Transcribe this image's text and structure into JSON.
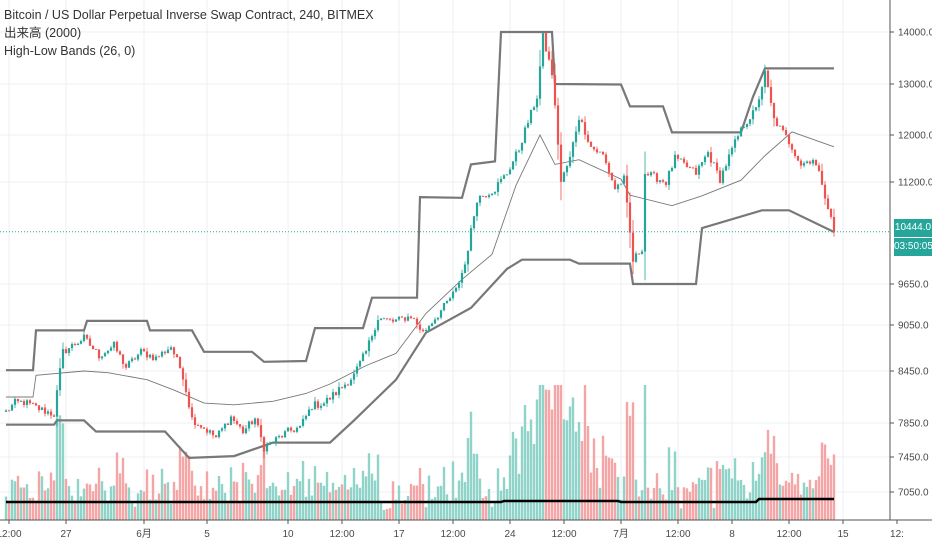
{
  "legend": {
    "symbol": "Bitcoin / US Dollar Perpetual Inverse Swap Contract, 240, BITMEX",
    "volume": "出来高 (2000)",
    "indicator": "High-Low Bands (26, 0)"
  },
  "price_badge": {
    "value": "10444.0",
    "countdown": "03:50:05",
    "color": "#26a69a"
  },
  "colors": {
    "up": "#26a69a",
    "down": "#ef5350",
    "volume_up": "#8fd3c9",
    "volume_down": "#f4a5a5",
    "band": "#787878",
    "grid": "#eeeff3",
    "price_line": "#26a69a",
    "volume_ma": "#000000"
  },
  "chart_data": {
    "type": "candlestick",
    "title": "Bitcoin / US Dollar Perpetual Inverse Swap Contract, 240, BITMEX",
    "y_ticks": [
      "14000.0",
      "13000.0",
      "12000.0",
      "11200.0",
      "9650.0",
      "9050.0",
      "8450.0",
      "7850.0",
      "7450.0",
      "7050.0"
    ],
    "x_ticks": [
      "12:00",
      "27",
      "6月",
      "5",
      "10",
      "12:00",
      "17",
      "12:00",
      "24",
      "12:00",
      "7月",
      "12:00",
      "8",
      "12:00",
      "15",
      "12:"
    ],
    "ylim": [
      6800,
      14200
    ],
    "last_price": 10444.0,
    "band_series": {
      "upper": [
        [
          0,
          8460
        ],
        [
          9,
          8460
        ],
        [
          10,
          8980
        ],
        [
          26,
          8980
        ],
        [
          27,
          9110
        ],
        [
          47,
          9110
        ],
        [
          48,
          8980
        ],
        [
          62,
          8980
        ],
        [
          66,
          8700
        ],
        [
          82,
          8700
        ],
        [
          86,
          8570
        ],
        [
          100,
          8580
        ],
        [
          103,
          9010
        ],
        [
          119,
          9010
        ],
        [
          122,
          9450
        ],
        [
          137,
          9450
        ],
        [
          138,
          10970
        ],
        [
          152,
          10960
        ],
        [
          155,
          11500
        ],
        [
          163,
          11550
        ],
        [
          165,
          14000
        ],
        [
          182,
          14000
        ],
        [
          183,
          13000
        ],
        [
          205,
          12990
        ],
        [
          208,
          12560
        ],
        [
          219,
          12560
        ],
        [
          222,
          12050
        ],
        [
          245,
          12050
        ],
        [
          249,
          12750
        ],
        [
          253,
          13300
        ],
        [
          276,
          13300
        ]
      ],
      "lower": [
        [
          0,
          7830
        ],
        [
          16,
          7830
        ],
        [
          17,
          7880
        ],
        [
          26,
          7880
        ],
        [
          30,
          7750
        ],
        [
          53,
          7750
        ],
        [
          61,
          7440
        ],
        [
          76,
          7460
        ],
        [
          89,
          7620
        ],
        [
          108,
          7620
        ],
        [
          116,
          7880
        ],
        [
          130,
          8350
        ],
        [
          140,
          8950
        ],
        [
          155,
          9300
        ],
        [
          167,
          9880
        ],
        [
          172,
          10020
        ],
        [
          188,
          10020
        ],
        [
          191,
          9960
        ],
        [
          208,
          9960
        ],
        [
          209,
          9650
        ],
        [
          230,
          9650
        ],
        [
          232,
          10500
        ],
        [
          252,
          10770
        ],
        [
          261,
          10770
        ],
        [
          276,
          10440
        ]
      ],
      "middle": [
        [
          0,
          8150
        ],
        [
          9,
          8150
        ],
        [
          10,
          8400
        ],
        [
          26,
          8450
        ],
        [
          34,
          8430
        ],
        [
          47,
          8350
        ],
        [
          56,
          8230
        ],
        [
          66,
          8080
        ],
        [
          76,
          8060
        ],
        [
          89,
          8100
        ],
        [
          100,
          8190
        ],
        [
          108,
          8300
        ],
        [
          120,
          8520
        ],
        [
          130,
          8680
        ],
        [
          140,
          9220
        ],
        [
          152,
          9720
        ],
        [
          162,
          10100
        ],
        [
          170,
          11150
        ],
        [
          178,
          12000
        ],
        [
          183,
          11500
        ],
        [
          191,
          11580
        ],
        [
          205,
          11250
        ],
        [
          208,
          11000
        ],
        [
          222,
          10840
        ],
        [
          232,
          10990
        ],
        [
          245,
          11230
        ],
        [
          253,
          11650
        ],
        [
          262,
          12060
        ],
        [
          276,
          11800
        ]
      ]
    },
    "candles": {
      "count": 277,
      "anchors": [
        [
          0,
          7980
        ],
        [
          3,
          8080
        ],
        [
          6,
          8090
        ],
        [
          12,
          8000
        ],
        [
          16,
          7950
        ],
        [
          19,
          8700
        ],
        [
          26,
          8880
        ],
        [
          31,
          8650
        ],
        [
          36,
          8780
        ],
        [
          40,
          8500
        ],
        [
          45,
          8700
        ],
        [
          50,
          8620
        ],
        [
          55,
          8770
        ],
        [
          59,
          8400
        ],
        [
          62,
          7900
        ],
        [
          70,
          7680
        ],
        [
          75,
          7920
        ],
        [
          79,
          7750
        ],
        [
          83,
          7900
        ],
        [
          86,
          7560
        ],
        [
          94,
          7750
        ],
        [
          98,
          7800
        ],
        [
          102,
          8050
        ],
        [
          106,
          8080
        ],
        [
          110,
          8200
        ],
        [
          116,
          8400
        ],
        [
          120,
          8700
        ],
        [
          124,
          9150
        ],
        [
          129,
          9100
        ],
        [
          135,
          9180
        ],
        [
          139,
          8950
        ],
        [
          144,
          9200
        ],
        [
          150,
          9560
        ],
        [
          153,
          9950
        ],
        [
          157,
          10950
        ],
        [
          163,
          11100
        ],
        [
          167,
          11350
        ],
        [
          171,
          11760
        ],
        [
          177,
          12750
        ],
        [
          179,
          13900
        ],
        [
          182,
          13200
        ],
        [
          185,
          11200
        ],
        [
          188,
          11600
        ],
        [
          191,
          12350
        ],
        [
          195,
          11800
        ],
        [
          199,
          11650
        ],
        [
          203,
          11100
        ],
        [
          206,
          11250
        ],
        [
          209,
          10000
        ],
        [
          212,
          10200
        ],
        [
          213,
          11350
        ],
        [
          220,
          11200
        ],
        [
          223,
          11600
        ],
        [
          230,
          11350
        ],
        [
          234,
          11700
        ],
        [
          238,
          11250
        ],
        [
          242,
          11750
        ],
        [
          246,
          12200
        ],
        [
          250,
          12500
        ],
        [
          253,
          13200
        ],
        [
          256,
          12300
        ],
        [
          259,
          12050
        ],
        [
          262,
          11800
        ],
        [
          265,
          11500
        ],
        [
          269,
          11600
        ],
        [
          272,
          11200
        ],
        [
          276,
          10444
        ]
      ]
    },
    "volume": {
      "count": 277,
      "moving_average_level": "low",
      "peak_candle_index": 181
    }
  },
  "x_axis_ticks": [
    {
      "label": "12:00",
      "i": 1
    },
    {
      "label": "27",
      "i": 20
    },
    {
      "label": "6月",
      "i": 46
    },
    {
      "label": "5",
      "i": 67
    },
    {
      "label": "10",
      "i": 94
    },
    {
      "label": "12:00",
      "i": 112
    },
    {
      "label": "17",
      "i": 131
    },
    {
      "label": "12:00",
      "i": 149
    },
    {
      "label": "24",
      "i": 168
    },
    {
      "label": "12:00",
      "i": 186
    },
    {
      "label": "7月",
      "i": 205
    },
    {
      "label": "12:00",
      "i": 224
    },
    {
      "label": "8",
      "i": 242
    },
    {
      "label": "12:00",
      "i": 261
    },
    {
      "label": "15",
      "i": 279
    },
    {
      "label": "12:",
      "i": 297
    }
  ],
  "y_axis_ticks": [
    {
      "label": "14000.0",
      "v": 14000
    },
    {
      "label": "13000.0",
      "v": 13000
    },
    {
      "label": "12000.0",
      "v": 12000
    },
    {
      "label": "11200.0",
      "v": 11200
    },
    {
      "label": "9650.0",
      "v": 9650
    },
    {
      "label": "9050.0",
      "v": 9050
    },
    {
      "label": "8450.0",
      "v": 8450
    },
    {
      "label": "7850.0",
      "v": 7850
    },
    {
      "label": "7450.0",
      "v": 7450
    },
    {
      "label": "7050.0",
      "v": 7050
    }
  ]
}
